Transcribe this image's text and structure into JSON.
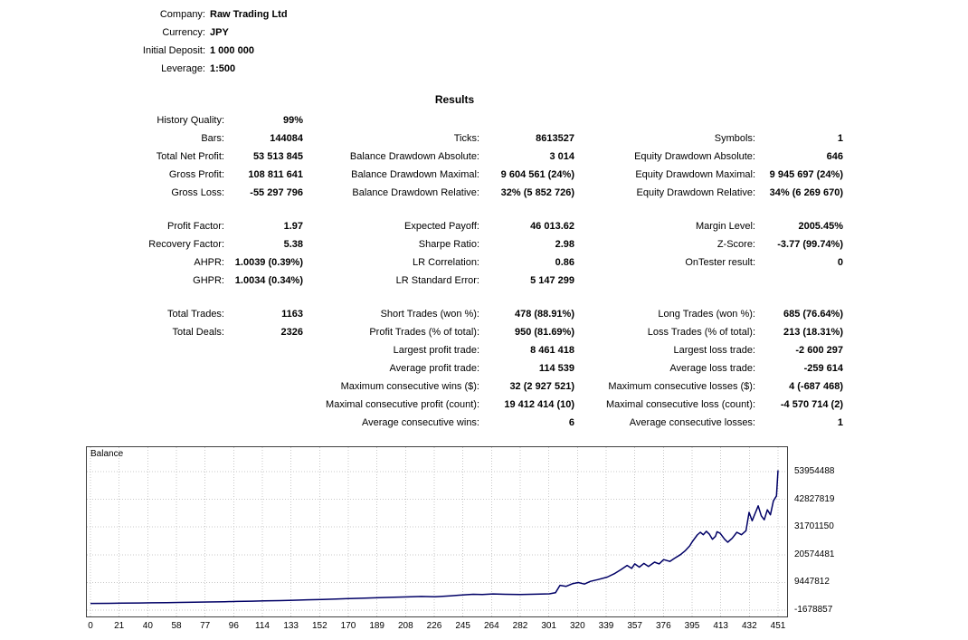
{
  "header": {
    "rows": [
      {
        "label": "Company:",
        "value": "Raw Trading Ltd"
      },
      {
        "label": "Currency:",
        "value": "JPY"
      },
      {
        "label": "Initial Deposit:",
        "value": "1 000 000"
      },
      {
        "label": "Leverage:",
        "value": "1:500"
      }
    ]
  },
  "results_title": "Results",
  "stats": {
    "rows": [
      [
        "History Quality:",
        "99%",
        "",
        "",
        "",
        ""
      ],
      [
        "Bars:",
        "144084",
        "Ticks:",
        "8613527",
        "Symbols:",
        "1"
      ],
      [
        "Total Net Profit:",
        "53 513 845",
        "Balance Drawdown Absolute:",
        "3 014",
        "Equity Drawdown Absolute:",
        "646"
      ],
      [
        "Gross Profit:",
        "108 811 641",
        "Balance Drawdown Maximal:",
        "9 604 561 (24%)",
        "Equity Drawdown Maximal:",
        "9 945 697 (24%)"
      ],
      [
        "Gross Loss:",
        "-55 297 796",
        "Balance Drawdown Relative:",
        "32% (5 852 726)",
        "Equity Drawdown Relative:",
        "34% (6 269 670)"
      ],
      [],
      [
        "Profit Factor:",
        "1.97",
        "Expected Payoff:",
        "46 013.62",
        "Margin Level:",
        "2005.45%"
      ],
      [
        "Recovery Factor:",
        "5.38",
        "Sharpe Ratio:",
        "2.98",
        "Z-Score:",
        "-3.77 (99.74%)"
      ],
      [
        "AHPR:",
        "1.0039 (0.39%)",
        "LR Correlation:",
        "0.86",
        "OnTester result:",
        "0"
      ],
      [
        "GHPR:",
        "1.0034 (0.34%)",
        "LR Standard Error:",
        "5 147 299",
        "",
        ""
      ],
      [],
      [
        "Total Trades:",
        "1163",
        "Short Trades (won %):",
        "478 (88.91%)",
        "Long Trades (won %):",
        "685 (76.64%)"
      ],
      [
        "Total Deals:",
        "2326",
        "Profit Trades (% of total):",
        "950 (81.69%)",
        "Loss Trades (% of total):",
        "213 (18.31%)"
      ],
      [
        "",
        "",
        "Largest profit trade:",
        "8 461 418",
        "Largest loss trade:",
        "-2 600 297"
      ],
      [
        "",
        "",
        "Average profit trade:",
        "114 539",
        "Average loss trade:",
        "-259 614"
      ],
      [
        "",
        "",
        "Maximum consecutive wins ($):",
        "32 (2 927 521)",
        "Maximum consecutive losses ($):",
        "4 (-687 468)"
      ],
      [
        "",
        "",
        "Maximal consecutive profit (count):",
        "19 412 414 (10)",
        "Maximal consecutive loss (count):",
        "-4 570 714 (2)"
      ],
      [
        "",
        "",
        "Average consecutive wins:",
        "6",
        "Average consecutive losses:",
        "1"
      ]
    ]
  },
  "chart_data": {
    "type": "line",
    "title": "Balance",
    "x_range": [
      0,
      451
    ],
    "x_ticks": [
      0,
      21,
      40,
      58,
      77,
      96,
      114,
      133,
      152,
      170,
      189,
      208,
      226,
      245,
      264,
      282,
      301,
      320,
      339,
      357,
      376,
      395,
      413,
      432,
      451
    ],
    "y_ticks": [
      53954488,
      42827819,
      31701150,
      20574481,
      9447812,
      -1678857
    ],
    "grid": true,
    "line_color": "#000066",
    "series": [
      {
        "name": "Balance",
        "points": [
          [
            0,
            1000000
          ],
          [
            12,
            1060000
          ],
          [
            21,
            1120000
          ],
          [
            32,
            1180000
          ],
          [
            40,
            1260000
          ],
          [
            50,
            1340000
          ],
          [
            58,
            1430000
          ],
          [
            68,
            1520000
          ],
          [
            77,
            1600000
          ],
          [
            88,
            1720000
          ],
          [
            96,
            1800000
          ],
          [
            106,
            1920000
          ],
          [
            114,
            2020000
          ],
          [
            124,
            2150000
          ],
          [
            133,
            2300000
          ],
          [
            142,
            2450000
          ],
          [
            152,
            2620000
          ],
          [
            161,
            2780000
          ],
          [
            170,
            2980000
          ],
          [
            180,
            3120000
          ],
          [
            189,
            3320000
          ],
          [
            199,
            3480000
          ],
          [
            208,
            3620000
          ],
          [
            217,
            3800000
          ],
          [
            226,
            3700000
          ],
          [
            236,
            4050000
          ],
          [
            245,
            4450000
          ],
          [
            251,
            4700000
          ],
          [
            257,
            4600000
          ],
          [
            264,
            4820000
          ],
          [
            272,
            4700000
          ],
          [
            282,
            4620000
          ],
          [
            292,
            4730000
          ],
          [
            301,
            4850000
          ],
          [
            305,
            5300000
          ],
          [
            308,
            8300000
          ],
          [
            312,
            7900000
          ],
          [
            316,
            8900000
          ],
          [
            320,
            9400000
          ],
          [
            324,
            8800000
          ],
          [
            328,
            9900000
          ],
          [
            333,
            10600000
          ],
          [
            339,
            11600000
          ],
          [
            344,
            13100000
          ],
          [
            348,
            14600000
          ],
          [
            352,
            16300000
          ],
          [
            355,
            15100000
          ],
          [
            357,
            16900000
          ],
          [
            360,
            15600000
          ],
          [
            363,
            17100000
          ],
          [
            366,
            15900000
          ],
          [
            370,
            17600000
          ],
          [
            373,
            16900000
          ],
          [
            376,
            18600000
          ],
          [
            380,
            17900000
          ],
          [
            383,
            19100000
          ],
          [
            387,
            20600000
          ],
          [
            390,
            22100000
          ],
          [
            393,
            24100000
          ],
          [
            395,
            26000000
          ],
          [
            398,
            28500000
          ],
          [
            400,
            29600000
          ],
          [
            402,
            28600000
          ],
          [
            404,
            30000000
          ],
          [
            406,
            28800000
          ],
          [
            408,
            26800000
          ],
          [
            410,
            28000000
          ],
          [
            411,
            29800000
          ],
          [
            413,
            29200000
          ],
          [
            416,
            26800000
          ],
          [
            418,
            25600000
          ],
          [
            421,
            27200000
          ],
          [
            424,
            29600000
          ],
          [
            427,
            28600000
          ],
          [
            430,
            30200000
          ],
          [
            432,
            37600000
          ],
          [
            434,
            34200000
          ],
          [
            436,
            37200000
          ],
          [
            438,
            40200000
          ],
          [
            440,
            36200000
          ],
          [
            442,
            34600000
          ],
          [
            444,
            38600000
          ],
          [
            446,
            36600000
          ],
          [
            448,
            42200000
          ],
          [
            450,
            44200000
          ],
          [
            451,
            54513845
          ]
        ]
      }
    ]
  }
}
